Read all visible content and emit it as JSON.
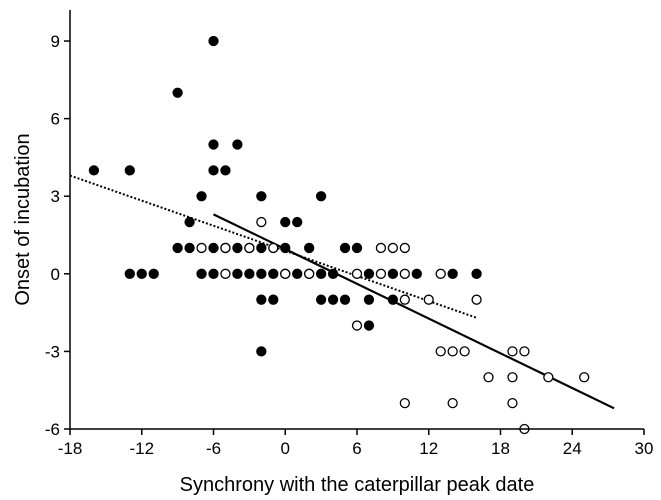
{
  "chart_data": {
    "type": "scatter",
    "title": "",
    "xlabel": "Synchrony with the caterpillar peak date",
    "ylabel": "Onset of incubation",
    "xlim": [
      -18,
      30
    ],
    "ylim": [
      -6,
      10.2
    ],
    "x_ticks": [
      -18,
      -12,
      -6,
      0,
      6,
      12,
      18,
      24,
      30
    ],
    "y_ticks": [
      -6,
      -3,
      0,
      3,
      6,
      9
    ],
    "x_tick_labels": [
      "-18",
      "-12",
      "-6",
      "0",
      "6",
      "12",
      "18",
      "24",
      "30"
    ],
    "y_tick_labels": [
      "-6",
      "-3",
      "0",
      "3",
      "6",
      "9"
    ],
    "grid": false,
    "legend": "none",
    "colors": {
      "filled": "#000000",
      "open_fill": "#ffffff",
      "stroke": "#000000"
    },
    "series": [
      {
        "marker": "filled-circle",
        "points": [
          {
            "x": -16,
            "y": 4
          },
          {
            "x": -13,
            "y": 4
          },
          {
            "x": -13,
            "y": 0
          },
          {
            "x": -12,
            "y": 0
          },
          {
            "x": -11,
            "y": 0
          },
          {
            "x": -9,
            "y": 7
          },
          {
            "x": -9,
            "y": 1
          },
          {
            "x": -8,
            "y": 2
          },
          {
            "x": -8,
            "y": 1
          },
          {
            "x": -7,
            "y": 3
          },
          {
            "x": -7,
            "y": 0
          },
          {
            "x": -6,
            "y": 9
          },
          {
            "x": -6,
            "y": 5
          },
          {
            "x": -6,
            "y": 4
          },
          {
            "x": -6,
            "y": 1
          },
          {
            "x": -6,
            "y": 0
          },
          {
            "x": -5,
            "y": 4
          },
          {
            "x": -5,
            "y": 1
          },
          {
            "x": -4,
            "y": 5
          },
          {
            "x": -4,
            "y": 1
          },
          {
            "x": -4,
            "y": 0
          },
          {
            "x": -3,
            "y": 1
          },
          {
            "x": -3,
            "y": 0
          },
          {
            "x": -2,
            "y": 3
          },
          {
            "x": -2,
            "y": 1
          },
          {
            "x": -2,
            "y": 0
          },
          {
            "x": -2,
            "y": -1
          },
          {
            "x": -2,
            "y": -3
          },
          {
            "x": -1,
            "y": 0
          },
          {
            "x": -1,
            "y": -1
          },
          {
            "x": 0,
            "y": 2
          },
          {
            "x": 0,
            "y": 1
          },
          {
            "x": 0,
            "y": 0
          },
          {
            "x": 1,
            "y": 2
          },
          {
            "x": 1,
            "y": 0
          },
          {
            "x": 2,
            "y": 1
          },
          {
            "x": 2,
            "y": 0
          },
          {
            "x": 3,
            "y": 3
          },
          {
            "x": 3,
            "y": 0
          },
          {
            "x": 3,
            "y": -1
          },
          {
            "x": 4,
            "y": 0
          },
          {
            "x": 4,
            "y": -1
          },
          {
            "x": 5,
            "y": 1
          },
          {
            "x": 5,
            "y": -1
          },
          {
            "x": 6,
            "y": 1
          },
          {
            "x": 7,
            "y": 0
          },
          {
            "x": 7,
            "y": -1
          },
          {
            "x": 7,
            "y": -2
          },
          {
            "x": 9,
            "y": 0
          },
          {
            "x": 9,
            "y": -1
          },
          {
            "x": 11,
            "y": 0
          },
          {
            "x": 14,
            "y": 0
          },
          {
            "x": 16,
            "y": 0
          }
        ]
      },
      {
        "marker": "open-circle",
        "points": [
          {
            "x": -7,
            "y": 1
          },
          {
            "x": -5,
            "y": 1
          },
          {
            "x": -5,
            "y": 0
          },
          {
            "x": -3,
            "y": 1
          },
          {
            "x": -2,
            "y": 2
          },
          {
            "x": -1,
            "y": 1
          },
          {
            "x": 0,
            "y": 0
          },
          {
            "x": 2,
            "y": 0
          },
          {
            "x": 6,
            "y": 0
          },
          {
            "x": 6,
            "y": -2
          },
          {
            "x": 8,
            "y": 1
          },
          {
            "x": 8,
            "y": 0
          },
          {
            "x": 9,
            "y": 1
          },
          {
            "x": 10,
            "y": 1
          },
          {
            "x": 10,
            "y": 0
          },
          {
            "x": 10,
            "y": -1
          },
          {
            "x": 10,
            "y": -5
          },
          {
            "x": 12,
            "y": -1
          },
          {
            "x": 13,
            "y": 0
          },
          {
            "x": 13,
            "y": -3
          },
          {
            "x": 14,
            "y": -3
          },
          {
            "x": 14,
            "y": -5
          },
          {
            "x": 15,
            "y": -3
          },
          {
            "x": 16,
            "y": -1
          },
          {
            "x": 17,
            "y": -4
          },
          {
            "x": 19,
            "y": -3
          },
          {
            "x": 19,
            "y": -4
          },
          {
            "x": 19,
            "y": -5
          },
          {
            "x": 20,
            "y": -3
          },
          {
            "x": 20,
            "y": -6
          },
          {
            "x": 22,
            "y": -4
          },
          {
            "x": 25,
            "y": -4
          }
        ]
      }
    ],
    "trend_lines": [
      {
        "style": "dotted",
        "from": {
          "x": -18,
          "y": 3.8
        },
        "to": {
          "x": 16,
          "y": -1.7
        }
      },
      {
        "style": "solid",
        "from": {
          "x": -6,
          "y": 2.3
        },
        "to": {
          "x": 27.5,
          "y": -5.2
        }
      }
    ]
  }
}
